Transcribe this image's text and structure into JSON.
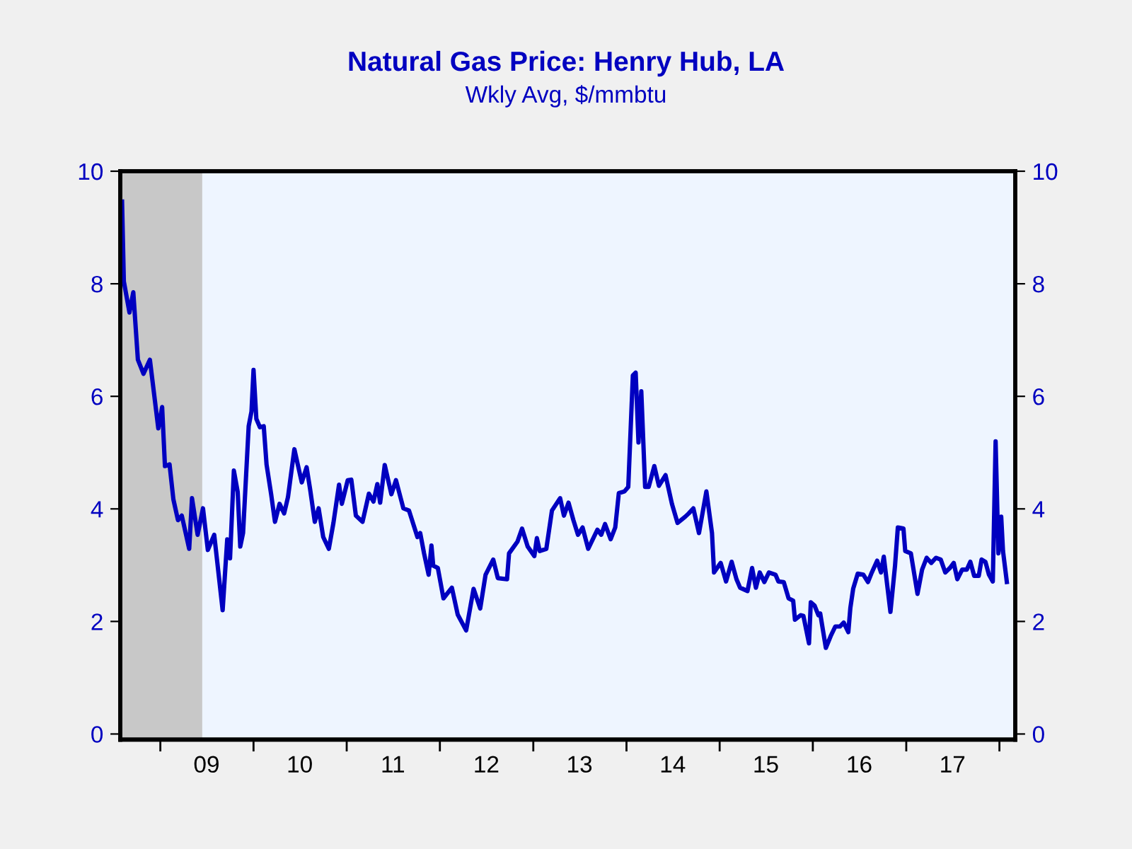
{
  "chart_data": {
    "type": "line",
    "title": "Natural Gas Price: Henry Hub, LA",
    "subtitle": "Wkly Avg, $/mmbtu",
    "xlim": [
      "2008-07-28",
      "2018-03-04"
    ],
    "ylim": [
      -0.1,
      10
    ],
    "yticks": [
      0,
      2,
      4,
      6,
      8,
      10
    ],
    "y2lim": [
      -0.1,
      10
    ],
    "y2ticks": [
      0,
      2,
      4,
      6,
      8,
      10
    ],
    "xticks": [
      {
        "value": "2009-01-01",
        "label": null
      },
      {
        "value": "2010-01-01",
        "label": null
      },
      {
        "value": "2011-01-01",
        "label": null
      },
      {
        "value": "2012-01-01",
        "label": null
      },
      {
        "value": "2013-01-01",
        "label": null
      },
      {
        "value": "2014-01-01",
        "label": null
      },
      {
        "value": "2015-01-01",
        "label": null
      },
      {
        "value": "2016-01-01",
        "label": null
      },
      {
        "value": "2017-01-01",
        "label": null
      },
      {
        "value": "2018-01-01",
        "label": null
      },
      {
        "value": "2009-07-01",
        "label": "09"
      },
      {
        "value": "2010-07-01",
        "label": "10"
      },
      {
        "value": "2011-07-01",
        "label": "11"
      },
      {
        "value": "2012-07-01",
        "label": "12"
      },
      {
        "value": "2013-07-01",
        "label": "13"
      },
      {
        "value": "2014-07-01",
        "label": "14"
      },
      {
        "value": "2015-07-01",
        "label": "15"
      },
      {
        "value": "2016-07-01",
        "label": "16"
      },
      {
        "value": "2017-07-01",
        "label": "17"
      }
    ],
    "bands": [
      {
        "axis": "x",
        "from": "2008-07-28",
        "to": "2009-06-14",
        "color": "#c8c8c8"
      }
    ],
    "grid": false,
    "legend": false,
    "marker": "none",
    "line_style": "solid",
    "series": [
      {
        "color": "#0000c0",
        "x": [
          "2008-08-04",
          "2008-08-11",
          "2008-09-02",
          "2008-09-17",
          "2008-10-05",
          "2008-10-27",
          "2008-11-21",
          "2008-12-24",
          "2009-01-08",
          "2009-01-19",
          "2009-02-06",
          "2009-02-21",
          "2009-03-11",
          "2009-03-26",
          "2009-04-24",
          "2009-05-05",
          "2009-05-27",
          "2009-06-17",
          "2009-07-06",
          "2009-07-31",
          "2009-09-02",
          "2009-09-20",
          "2009-10-01",
          "2009-10-16",
          "2009-10-31",
          "2009-11-10",
          "2009-11-21",
          "2009-12-13",
          "2009-12-24",
          "2010-01-01",
          "2010-01-12",
          "2010-01-26",
          "2010-02-10",
          "2010-02-21",
          "2010-03-11",
          "2010-03-26",
          "2010-04-13",
          "2010-05-01",
          "2010-05-16",
          "2010-06-10",
          "2010-07-09",
          "2010-07-28",
          "2010-08-11",
          "2010-08-29",
          "2010-09-13",
          "2010-10-01",
          "2010-10-23",
          "2010-11-10",
          "2010-12-02",
          "2010-12-13",
          "2011-01-05",
          "2011-01-19",
          "2011-02-06",
          "2011-03-04",
          "2011-03-29",
          "2011-04-16",
          "2011-05-01",
          "2011-05-12",
          "2011-05-30",
          "2011-06-25",
          "2011-07-13",
          "2011-08-11",
          "2011-09-02",
          "2011-10-05",
          "2011-10-16",
          "2011-10-31",
          "2011-11-18",
          "2011-11-29",
          "2011-12-06",
          "2011-12-24",
          "2012-01-15",
          "2012-02-17",
          "2012-03-11",
          "2012-04-13",
          "2012-05-12",
          "2012-06-07",
          "2012-06-28",
          "2012-07-28",
          "2012-08-15",
          "2012-09-20",
          "2012-09-28",
          "2012-10-31",
          "2012-11-18",
          "2012-12-10",
          "2013-01-05",
          "2013-01-15",
          "2013-01-26",
          "2013-02-21",
          "2013-03-15",
          "2013-04-16",
          "2013-05-01",
          "2013-05-19",
          "2013-06-07",
          "2013-06-25",
          "2013-07-13",
          "2013-08-04",
          "2013-09-09",
          "2013-09-24",
          "2013-10-09",
          "2013-10-31",
          "2013-11-18",
          "2013-12-02",
          "2013-12-24",
          "2014-01-08",
          "2014-01-26",
          "2014-02-06",
          "2014-02-17",
          "2014-02-28",
          "2014-03-15",
          "2014-03-29",
          "2014-04-20",
          "2014-05-08",
          "2014-06-03",
          "2014-06-28",
          "2014-07-20",
          "2014-08-19",
          "2014-09-02",
          "2014-09-20",
          "2014-10-12",
          "2014-11-10",
          "2014-12-02",
          "2014-12-10",
          "2014-12-28",
          "2015-01-05",
          "2015-01-26",
          "2015-02-17",
          "2015-03-08",
          "2015-03-22",
          "2015-04-20",
          "2015-05-08",
          "2015-05-23",
          "2015-06-07",
          "2015-06-25",
          "2015-07-13",
          "2015-08-08",
          "2015-08-19",
          "2015-09-09",
          "2015-09-28",
          "2015-10-16",
          "2015-10-23",
          "2015-11-14",
          "2015-11-25",
          "2015-12-17",
          "2015-12-24",
          "2016-01-08",
          "2016-01-23",
          "2016-01-30",
          "2016-02-21",
          "2016-03-11",
          "2016-03-29",
          "2016-04-16",
          "2016-05-01",
          "2016-05-19",
          "2016-05-27",
          "2016-06-07",
          "2016-06-25",
          "2016-07-17",
          "2016-08-04",
          "2016-08-19",
          "2016-09-09",
          "2016-09-24",
          "2016-10-05",
          "2016-10-31",
          "2016-11-18",
          "2016-11-29",
          "2016-12-21",
          "2016-12-28",
          "2017-01-19",
          "2017-02-14",
          "2017-03-04",
          "2017-03-22",
          "2017-04-09",
          "2017-04-27",
          "2017-05-16",
          "2017-06-03",
          "2017-06-21",
          "2017-07-06",
          "2017-07-20",
          "2017-08-08",
          "2017-08-26",
          "2017-09-09",
          "2017-09-24",
          "2017-10-12",
          "2017-10-23",
          "2017-11-07",
          "2017-11-21",
          "2017-12-06",
          "2017-12-17",
          "2017-12-28",
          "2018-01-08",
          "2018-01-15",
          "2018-01-30"
        ],
        "values": [
          9.46,
          8.04,
          7.49,
          7.85,
          6.65,
          6.4,
          6.65,
          5.43,
          5.81,
          4.76,
          4.79,
          4.17,
          3.8,
          3.88,
          3.29,
          4.19,
          3.54,
          4.01,
          3.27,
          3.54,
          2.2,
          3.46,
          3.12,
          4.68,
          4.3,
          3.33,
          3.57,
          5.47,
          5.73,
          6.47,
          5.6,
          5.45,
          5.47,
          4.79,
          4.26,
          3.77,
          4.09,
          3.92,
          4.21,
          5.06,
          4.47,
          4.74,
          4.34,
          3.77,
          4.01,
          3.5,
          3.29,
          3.75,
          4.43,
          4.09,
          4.51,
          4.52,
          3.88,
          3.77,
          4.27,
          4.13,
          4.44,
          4.11,
          4.78,
          4.26,
          4.51,
          4.01,
          3.97,
          3.5,
          3.57,
          3.21,
          2.83,
          3.35,
          2.99,
          2.95,
          2.41,
          2.6,
          2.12,
          1.84,
          2.58,
          2.23,
          2.83,
          3.1,
          2.77,
          2.75,
          3.21,
          3.42,
          3.65,
          3.33,
          3.16,
          3.48,
          3.25,
          3.29,
          3.97,
          4.19,
          3.88,
          4.11,
          3.8,
          3.54,
          3.67,
          3.29,
          3.63,
          3.54,
          3.73,
          3.46,
          3.67,
          4.28,
          4.31,
          4.39,
          6.37,
          6.42,
          5.18,
          6.09,
          4.39,
          4.39,
          4.76,
          4.41,
          4.6,
          4.09,
          3.75,
          3.86,
          3.92,
          4.01,
          3.57,
          4.31,
          3.57,
          2.87,
          2.99,
          3.04,
          2.71,
          3.06,
          2.75,
          2.6,
          2.54,
          2.95,
          2.6,
          2.87,
          2.7,
          2.87,
          2.83,
          2.71,
          2.7,
          2.41,
          2.37,
          2.03,
          2.11,
          2.1,
          1.61,
          2.34,
          2.28,
          2.11,
          2.14,
          1.53,
          1.74,
          1.91,
          1.91,
          1.98,
          1.81,
          2.24,
          2.58,
          2.85,
          2.83,
          2.7,
          2.87,
          3.08,
          2.87,
          3.15,
          2.17,
          2.99,
          3.67,
          3.65,
          3.25,
          3.21,
          2.49,
          2.92,
          3.13,
          3.04,
          3.13,
          3.1,
          2.87,
          2.95,
          3.04,
          2.75,
          2.92,
          2.92,
          3.06,
          2.81,
          2.81,
          3.1,
          3.06,
          2.83,
          2.71,
          5.2,
          3.21,
          3.86,
          3.25,
          2.7
        ]
      }
    ]
  }
}
